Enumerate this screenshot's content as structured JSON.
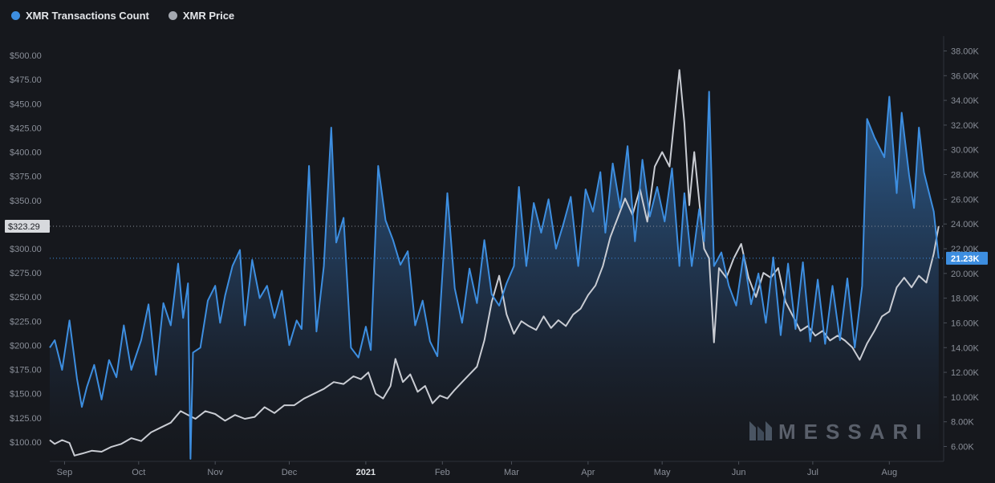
{
  "legend": {
    "tx_label": "XMR Transactions Count",
    "price_label": "XMR Price"
  },
  "colors": {
    "background": "#16181d",
    "tx": "#3d8ee0",
    "price": "#c9ccd3",
    "grid": "#262931"
  },
  "watermark": "MESSARI",
  "chart_data": {
    "type": "area",
    "x_ticks": [
      "Sep",
      "Oct",
      "Nov",
      "Dec",
      "2021",
      "Feb",
      "Mar",
      "Apr",
      "May",
      "Jun",
      "Jul",
      "Aug"
    ],
    "x_range": [
      "2020-08-26",
      "2021-08-23"
    ],
    "y_left": {
      "label": "XMR Price",
      "range": [
        80,
        520
      ],
      "ticks": [
        "$100.00",
        "$125.00",
        "$150.00",
        "$175.00",
        "$200.00",
        "$225.00",
        "$250.00",
        "$275.00",
        "$300.00",
        "$325.00",
        "$350.00",
        "$375.00",
        "$400.00",
        "$425.00",
        "$450.00",
        "$475.00",
        "$500.00"
      ],
      "current_value_label": "$323.29",
      "current_value": 323.29
    },
    "y_right": {
      "label": "XMR Transactions Count",
      "range": [
        4800,
        39200
      ],
      "ticks": [
        "6.00K",
        "8.00K",
        "10.00K",
        "12.00K",
        "14.00K",
        "16.00K",
        "18.00K",
        "20.00K",
        "22.00K",
        "24.00K",
        "26.00K",
        "28.00K",
        "30.00K",
        "32.00K",
        "34.00K",
        "36.00K",
        "38.00K"
      ],
      "current_value_label": "21.23K",
      "current_value": 21230
    },
    "grid": false,
    "legend_placement": "top-left",
    "series": [
      {
        "name": "XMR Transactions Count",
        "axis": "right",
        "points": [
          [
            "2020-08-26",
            14000
          ],
          [
            "2020-08-28",
            14600
          ],
          [
            "2020-08-31",
            12200
          ],
          [
            "2020-09-03",
            16200
          ],
          [
            "2020-09-06",
            11500
          ],
          [
            "2020-09-08",
            9200
          ],
          [
            "2020-09-10",
            10800
          ],
          [
            "2020-09-13",
            12600
          ],
          [
            "2020-09-16",
            9800
          ],
          [
            "2020-09-19",
            13000
          ],
          [
            "2020-09-22",
            11600
          ],
          [
            "2020-09-25",
            15800
          ],
          [
            "2020-09-28",
            12200
          ],
          [
            "2020-10-02",
            14600
          ],
          [
            "2020-10-05",
            17500
          ],
          [
            "2020-10-08",
            11800
          ],
          [
            "2020-10-11",
            17600
          ],
          [
            "2020-10-14",
            15800
          ],
          [
            "2020-10-17",
            20800
          ],
          [
            "2020-10-19",
            16400
          ],
          [
            "2020-10-21",
            19200
          ],
          [
            "2020-10-22",
            5000
          ],
          [
            "2020-10-23",
            13600
          ],
          [
            "2020-10-26",
            14000
          ],
          [
            "2020-10-29",
            17800
          ],
          [
            "2020-11-01",
            19000
          ],
          [
            "2020-11-03",
            16000
          ],
          [
            "2020-11-05",
            18200
          ],
          [
            "2020-11-08",
            20600
          ],
          [
            "2020-11-11",
            21900
          ],
          [
            "2020-11-13",
            15800
          ],
          [
            "2020-11-16",
            21100
          ],
          [
            "2020-11-19",
            18000
          ],
          [
            "2020-11-22",
            19000
          ],
          [
            "2020-11-25",
            16400
          ],
          [
            "2020-11-28",
            18600
          ],
          [
            "2020-12-01",
            14200
          ],
          [
            "2020-12-04",
            16200
          ],
          [
            "2020-12-06",
            15500
          ],
          [
            "2020-12-09",
            28700
          ],
          [
            "2020-12-12",
            15300
          ],
          [
            "2020-12-15",
            20600
          ],
          [
            "2020-12-18",
            31800
          ],
          [
            "2020-12-20",
            22500
          ],
          [
            "2020-12-23",
            24500
          ],
          [
            "2020-12-26",
            14000
          ],
          [
            "2020-12-29",
            13200
          ],
          [
            "2021-01-01",
            15700
          ],
          [
            "2021-01-03",
            13800
          ],
          [
            "2021-01-06",
            28700
          ],
          [
            "2021-01-09",
            24300
          ],
          [
            "2021-01-12",
            22700
          ],
          [
            "2021-01-15",
            20700
          ],
          [
            "2021-01-18",
            21800
          ],
          [
            "2021-01-21",
            15800
          ],
          [
            "2021-01-24",
            17800
          ],
          [
            "2021-01-27",
            14500
          ],
          [
            "2021-01-30",
            13300
          ],
          [
            "2021-02-03",
            26500
          ],
          [
            "2021-02-06",
            18800
          ],
          [
            "2021-02-09",
            16000
          ],
          [
            "2021-02-12",
            20400
          ],
          [
            "2021-02-15",
            17600
          ],
          [
            "2021-02-18",
            22700
          ],
          [
            "2021-02-21",
            18300
          ],
          [
            "2021-02-24",
            17400
          ],
          [
            "2021-02-27",
            19200
          ],
          [
            "2021-03-02",
            20600
          ],
          [
            "2021-03-04",
            27000
          ],
          [
            "2021-03-07",
            20600
          ],
          [
            "2021-03-10",
            25700
          ],
          [
            "2021-03-13",
            23300
          ],
          [
            "2021-03-16",
            26000
          ],
          [
            "2021-03-19",
            22000
          ],
          [
            "2021-03-22",
            24000
          ],
          [
            "2021-03-25",
            26200
          ],
          [
            "2021-03-28",
            20600
          ],
          [
            "2021-03-31",
            26800
          ],
          [
            "2021-04-03",
            25000
          ],
          [
            "2021-04-06",
            28200
          ],
          [
            "2021-04-08",
            23300
          ],
          [
            "2021-04-11",
            28900
          ],
          [
            "2021-04-14",
            25300
          ],
          [
            "2021-04-17",
            30300
          ],
          [
            "2021-04-20",
            22600
          ],
          [
            "2021-04-23",
            29200
          ],
          [
            "2021-04-26",
            24600
          ],
          [
            "2021-04-29",
            27000
          ],
          [
            "2021-05-02",
            24200
          ],
          [
            "2021-05-05",
            28500
          ],
          [
            "2021-05-08",
            20600
          ],
          [
            "2021-05-10",
            26500
          ],
          [
            "2021-05-13",
            20600
          ],
          [
            "2021-05-16",
            25200
          ],
          [
            "2021-05-18",
            22600
          ],
          [
            "2021-05-20",
            34700
          ],
          [
            "2021-05-22",
            20600
          ],
          [
            "2021-05-25",
            21700
          ],
          [
            "2021-05-28",
            19000
          ],
          [
            "2021-05-31",
            17400
          ],
          [
            "2021-06-03",
            21500
          ],
          [
            "2021-06-06",
            17500
          ],
          [
            "2021-06-09",
            20000
          ],
          [
            "2021-06-12",
            16000
          ],
          [
            "2021-06-15",
            21300
          ],
          [
            "2021-06-18",
            15000
          ],
          [
            "2021-06-21",
            20800
          ],
          [
            "2021-06-24",
            15500
          ],
          [
            "2021-06-27",
            20900
          ],
          [
            "2021-06-30",
            14500
          ],
          [
            "2021-07-03",
            19500
          ],
          [
            "2021-07-06",
            14300
          ],
          [
            "2021-07-09",
            19000
          ],
          [
            "2021-07-12",
            14600
          ],
          [
            "2021-07-15",
            19600
          ],
          [
            "2021-07-18",
            14000
          ],
          [
            "2021-07-21",
            19000
          ],
          [
            "2021-07-23",
            32500
          ],
          [
            "2021-07-26",
            31000
          ],
          [
            "2021-07-30",
            29400
          ],
          [
            "2021-08-01",
            34300
          ],
          [
            "2021-08-04",
            26500
          ],
          [
            "2021-08-06",
            33000
          ],
          [
            "2021-08-09",
            28000
          ],
          [
            "2021-08-11",
            25300
          ],
          [
            "2021-08-13",
            31800
          ],
          [
            "2021-08-15",
            28200
          ],
          [
            "2021-08-17",
            26600
          ],
          [
            "2021-08-19",
            25000
          ],
          [
            "2021-08-21",
            21230
          ]
        ]
      },
      {
        "name": "XMR Price",
        "axis": "left",
        "points": [
          [
            "2020-08-26",
            102
          ],
          [
            "2020-08-28",
            98
          ],
          [
            "2020-08-31",
            102
          ],
          [
            "2020-09-03",
            99
          ],
          [
            "2020-09-05",
            86
          ],
          [
            "2020-09-08",
            88
          ],
          [
            "2020-09-12",
            91
          ],
          [
            "2020-09-16",
            90
          ],
          [
            "2020-09-20",
            95
          ],
          [
            "2020-09-24",
            98
          ],
          [
            "2020-09-28",
            104
          ],
          [
            "2020-10-02",
            101
          ],
          [
            "2020-10-06",
            110
          ],
          [
            "2020-10-10",
            115
          ],
          [
            "2020-10-14",
            120
          ],
          [
            "2020-10-18",
            132
          ],
          [
            "2020-10-21",
            128
          ],
          [
            "2020-10-24",
            124
          ],
          [
            "2020-10-28",
            132
          ],
          [
            "2020-11-01",
            129
          ],
          [
            "2020-11-05",
            122
          ],
          [
            "2020-11-09",
            128
          ],
          [
            "2020-11-13",
            124
          ],
          [
            "2020-11-17",
            126
          ],
          [
            "2020-11-21",
            136
          ],
          [
            "2020-11-25",
            130
          ],
          [
            "2020-11-29",
            138
          ],
          [
            "2020-12-03",
            138
          ],
          [
            "2020-12-07",
            145
          ],
          [
            "2020-12-11",
            150
          ],
          [
            "2020-12-15",
            155
          ],
          [
            "2020-12-19",
            162
          ],
          [
            "2020-12-23",
            160
          ],
          [
            "2020-12-27",
            168
          ],
          [
            "2020-12-30",
            165
          ],
          [
            "2021-01-02",
            172
          ],
          [
            "2021-01-05",
            150
          ],
          [
            "2021-01-08",
            145
          ],
          [
            "2021-01-11",
            158
          ],
          [
            "2021-01-13",
            186
          ],
          [
            "2021-01-16",
            162
          ],
          [
            "2021-01-19",
            170
          ],
          [
            "2021-01-22",
            152
          ],
          [
            "2021-01-25",
            158
          ],
          [
            "2021-01-28",
            140
          ],
          [
            "2021-01-31",
            148
          ],
          [
            "2021-02-03",
            145
          ],
          [
            "2021-02-06",
            154
          ],
          [
            "2021-02-09",
            162
          ],
          [
            "2021-02-12",
            170
          ],
          [
            "2021-02-15",
            178
          ],
          [
            "2021-02-18",
            205
          ],
          [
            "2021-02-21",
            245
          ],
          [
            "2021-02-24",
            272
          ],
          [
            "2021-02-27",
            232
          ],
          [
            "2021-03-02",
            212
          ],
          [
            "2021-03-05",
            225
          ],
          [
            "2021-03-08",
            220
          ],
          [
            "2021-03-11",
            216
          ],
          [
            "2021-03-14",
            230
          ],
          [
            "2021-03-17",
            218
          ],
          [
            "2021-03-20",
            226
          ],
          [
            "2021-03-23",
            220
          ],
          [
            "2021-03-26",
            232
          ],
          [
            "2021-03-29",
            238
          ],
          [
            "2021-04-01",
            252
          ],
          [
            "2021-04-04",
            262
          ],
          [
            "2021-04-07",
            282
          ],
          [
            "2021-04-10",
            312
          ],
          [
            "2021-04-13",
            332
          ],
          [
            "2021-04-16",
            352
          ],
          [
            "2021-04-19",
            335
          ],
          [
            "2021-04-22",
            362
          ],
          [
            "2021-04-25",
            328
          ],
          [
            "2021-04-28",
            385
          ],
          [
            "2021-05-01",
            400
          ],
          [
            "2021-05-04",
            385
          ],
          [
            "2021-05-07",
            460
          ],
          [
            "2021-05-08",
            485
          ],
          [
            "2021-05-10",
            430
          ],
          [
            "2021-05-12",
            345
          ],
          [
            "2021-05-14",
            400
          ],
          [
            "2021-05-16",
            350
          ],
          [
            "2021-05-18",
            300
          ],
          [
            "2021-05-20",
            290
          ],
          [
            "2021-05-22",
            203
          ],
          [
            "2021-05-24",
            280
          ],
          [
            "2021-05-27",
            270
          ],
          [
            "2021-05-30",
            290
          ],
          [
            "2021-06-02",
            305
          ],
          [
            "2021-06-05",
            270
          ],
          [
            "2021-06-08",
            250
          ],
          [
            "2021-06-11",
            275
          ],
          [
            "2021-06-14",
            270
          ],
          [
            "2021-06-17",
            280
          ],
          [
            "2021-06-20",
            245
          ],
          [
            "2021-06-23",
            230
          ],
          [
            "2021-06-26",
            215
          ],
          [
            "2021-06-29",
            220
          ],
          [
            "2021-07-02",
            210
          ],
          [
            "2021-07-05",
            215
          ],
          [
            "2021-07-08",
            205
          ],
          [
            "2021-07-11",
            210
          ],
          [
            "2021-07-14",
            205
          ],
          [
            "2021-07-17",
            198
          ],
          [
            "2021-07-20",
            185
          ],
          [
            "2021-07-23",
            202
          ],
          [
            "2021-07-26",
            215
          ],
          [
            "2021-07-29",
            230
          ],
          [
            "2021-08-01",
            235
          ],
          [
            "2021-08-04",
            260
          ],
          [
            "2021-08-07",
            270
          ],
          [
            "2021-08-10",
            260
          ],
          [
            "2021-08-13",
            272
          ],
          [
            "2021-08-16",
            265
          ],
          [
            "2021-08-19",
            295
          ],
          [
            "2021-08-21",
            323.29
          ]
        ]
      }
    ]
  }
}
